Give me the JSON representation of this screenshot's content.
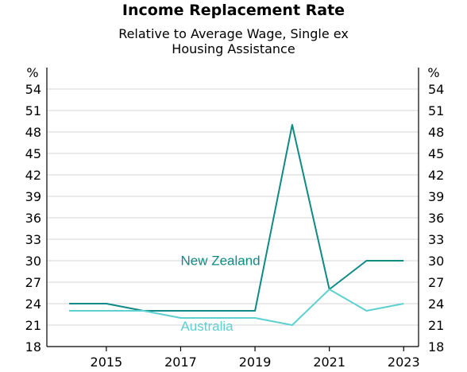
{
  "chart_data": {
    "type": "line",
    "title": "Income Replacement Rate",
    "subtitle_lines": [
      "Relative to Average Wage, Single ex",
      "Housing Assistance"
    ],
    "left_unit": "%",
    "right_unit": "%",
    "ylim": [
      18,
      57
    ],
    "yticks": [
      18,
      21,
      24,
      27,
      30,
      33,
      36,
      39,
      42,
      45,
      48,
      51,
      54
    ],
    "xlim": [
      2013.4,
      2023.4
    ],
    "xticks": [
      2015,
      2017,
      2019,
      2021,
      2023
    ],
    "grid": true,
    "series": [
      {
        "name": "New Zealand",
        "color": "#0f8a84",
        "x": [
          2014,
          2015,
          2016,
          2017,
          2018,
          2019,
          2020,
          2021,
          2022,
          2023
        ],
        "values": [
          24,
          24,
          23,
          23,
          23,
          23,
          49,
          26,
          30,
          30
        ],
        "label_x": 2017,
        "label_y": 29.4
      },
      {
        "name": "Australia",
        "color": "#5ed0d0",
        "x": [
          2014,
          2015,
          2016,
          2017,
          2018,
          2019,
          2020,
          2021,
          2022,
          2023
        ],
        "values": [
          23,
          23,
          23,
          22,
          22,
          22,
          21,
          26,
          23,
          24
        ],
        "label_x": 2017,
        "label_y": 20.2
      }
    ]
  }
}
